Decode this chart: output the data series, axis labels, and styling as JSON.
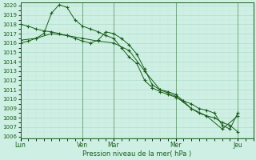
{
  "xlabel": "Pression niveau de la mer( hPa )",
  "background_color": "#cef0e4",
  "line_color": "#1a5c1a",
  "grid_color_major": "#a8d8c8",
  "grid_color_minor": "#c0e8d8",
  "ylim": [
    1006,
    1020
  ],
  "yticks": [
    1006,
    1007,
    1008,
    1009,
    1010,
    1011,
    1012,
    1013,
    1014,
    1015,
    1016,
    1017,
    1018,
    1019,
    1020
  ],
  "xtick_labels": [
    "Lun",
    "Ven",
    "Mar",
    "Mer",
    "Jeu"
  ],
  "xtick_positions": [
    0,
    8,
    12,
    20,
    28
  ],
  "xlim": [
    0,
    30
  ],
  "line1_x": [
    0,
    1,
    2,
    3,
    4,
    5,
    6,
    7,
    8,
    9,
    10,
    11,
    12,
    13,
    14,
    15,
    16,
    17,
    18,
    19,
    20,
    21,
    22,
    23,
    24,
    25,
    26,
    27,
    28
  ],
  "line1_y": [
    1016.0,
    1016.2,
    1016.5,
    1017.0,
    1019.2,
    1020.1,
    1019.8,
    1018.5,
    1017.8,
    1017.5,
    1017.2,
    1016.8,
    1016.5,
    1015.5,
    1014.5,
    1013.8,
    1012.0,
    1011.2,
    1010.8,
    1010.5,
    1010.2,
    1009.8,
    1009.5,
    1009.0,
    1008.8,
    1008.5,
    1007.2,
    1006.8,
    1008.5
  ],
  "line2_x": [
    0,
    1,
    2,
    3,
    4,
    5,
    6,
    7,
    8,
    9,
    10,
    11,
    12,
    13,
    14,
    15,
    16,
    17,
    18,
    19,
    20,
    21,
    22,
    23,
    24,
    25,
    26,
    27,
    28
  ],
  "line2_y": [
    1018.0,
    1017.8,
    1017.5,
    1017.3,
    1017.2,
    1017.0,
    1016.8,
    1016.5,
    1016.2,
    1016.0,
    1016.3,
    1017.2,
    1017.0,
    1016.5,
    1015.8,
    1014.8,
    1013.2,
    1011.5,
    1011.0,
    1010.8,
    1010.5,
    1009.8,
    1009.0,
    1008.5,
    1008.2,
    1008.0,
    1007.5,
    1007.2,
    1006.5
  ],
  "line3_x": [
    0,
    2,
    4,
    6,
    8,
    10,
    12,
    14,
    16,
    18,
    20,
    22,
    24,
    26,
    28
  ],
  "line3_y": [
    1016.3,
    1016.5,
    1017.0,
    1016.8,
    1016.5,
    1016.2,
    1016.0,
    1015.2,
    1013.0,
    1011.0,
    1010.3,
    1009.0,
    1008.2,
    1006.8,
    1008.2
  ]
}
